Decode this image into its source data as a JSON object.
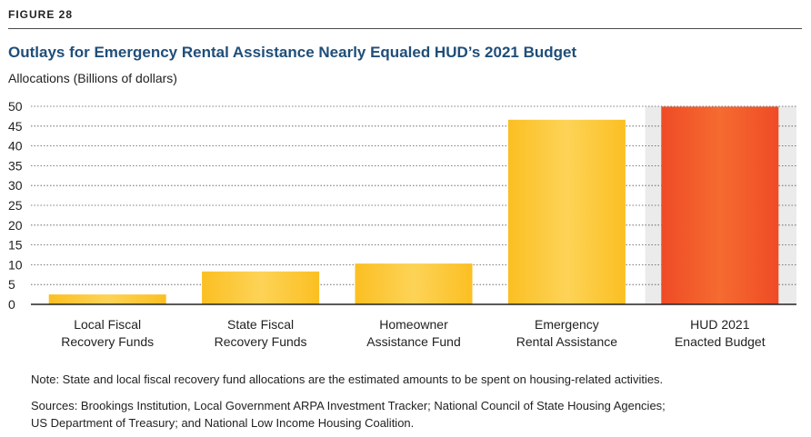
{
  "figure_label": "FIGURE 28",
  "title": "Outlays for Emergency Rental Assistance Nearly Equaled HUD’s 2021 Budget",
  "note": "Note: State and local fiscal recovery fund allocations are the estimated amounts to be spent on housing-related activities.",
  "sources_line1": "Sources: Brookings Institution, Local Government ARPA Investment Tracker; National Council of State Housing Agencies;",
  "sources_line2": "US Department of Treasury; and National Low Income Housing Coalition.",
  "colors": {
    "yellow_bar": "#fcc63a",
    "orange_bar": "#f0592a",
    "highlight_bg": "#ebebeb",
    "title": "#1f4e79"
  },
  "chart_data": {
    "type": "bar",
    "ylabel": "Allocations (Billions of dollars)",
    "ylim": [
      0,
      50
    ],
    "yticks": [
      0,
      5,
      10,
      15,
      20,
      25,
      30,
      35,
      40,
      45,
      50
    ],
    "grid": "horizontal dotted",
    "categories": [
      [
        "Local Fiscal",
        "Recovery Funds"
      ],
      [
        "State Fiscal",
        "Recovery Funds"
      ],
      [
        "Homeowner",
        "Assistance Fund"
      ],
      [
        "Emergency",
        "Rental Assistance"
      ],
      [
        "HUD 2021",
        "Enacted Budget"
      ]
    ],
    "values": [
      2.5,
      8.3,
      10.3,
      46.6,
      49.9
    ],
    "highlighted_category_index": 4
  }
}
